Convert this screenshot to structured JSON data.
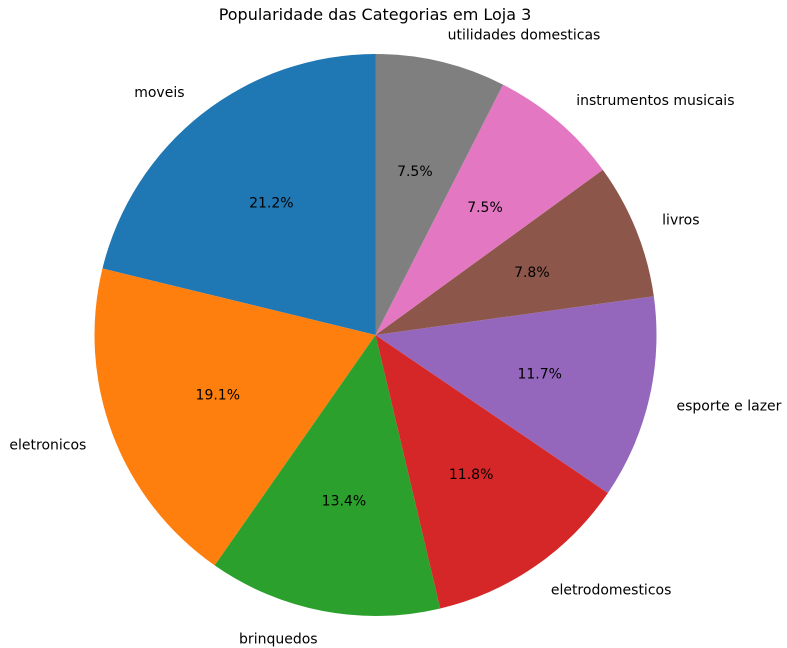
{
  "chart_data": {
    "type": "pie",
    "title": "Popularidade das Categorias em Loja 3",
    "start_angle_deg": 90,
    "direction": "counterclockwise",
    "slices": [
      {
        "label": "moveis",
        "percent": "21.2%",
        "value": 21.2,
        "color": "#1f77b4"
      },
      {
        "label": "eletronicos",
        "percent": "19.1%",
        "value": 19.1,
        "color": "#ff7f0e"
      },
      {
        "label": "brinquedos",
        "percent": "13.4%",
        "value": 13.4,
        "color": "#2ca02c"
      },
      {
        "label": "eletrodomesticos",
        "percent": "11.8%",
        "value": 11.8,
        "color": "#d62728"
      },
      {
        "label": "esporte e lazer",
        "percent": "11.7%",
        "value": 11.7,
        "color": "#9467bd"
      },
      {
        "label": "livros",
        "percent": "7.8%",
        "value": 7.8,
        "color": "#8c564b"
      },
      {
        "label": "instrumentos musicais",
        "percent": "7.5%",
        "value": 7.5,
        "color": "#e377c2"
      },
      {
        "label": "utilidades domesticas",
        "percent": "7.5%",
        "value": 7.5,
        "color": "#7f7f7f"
      }
    ]
  }
}
